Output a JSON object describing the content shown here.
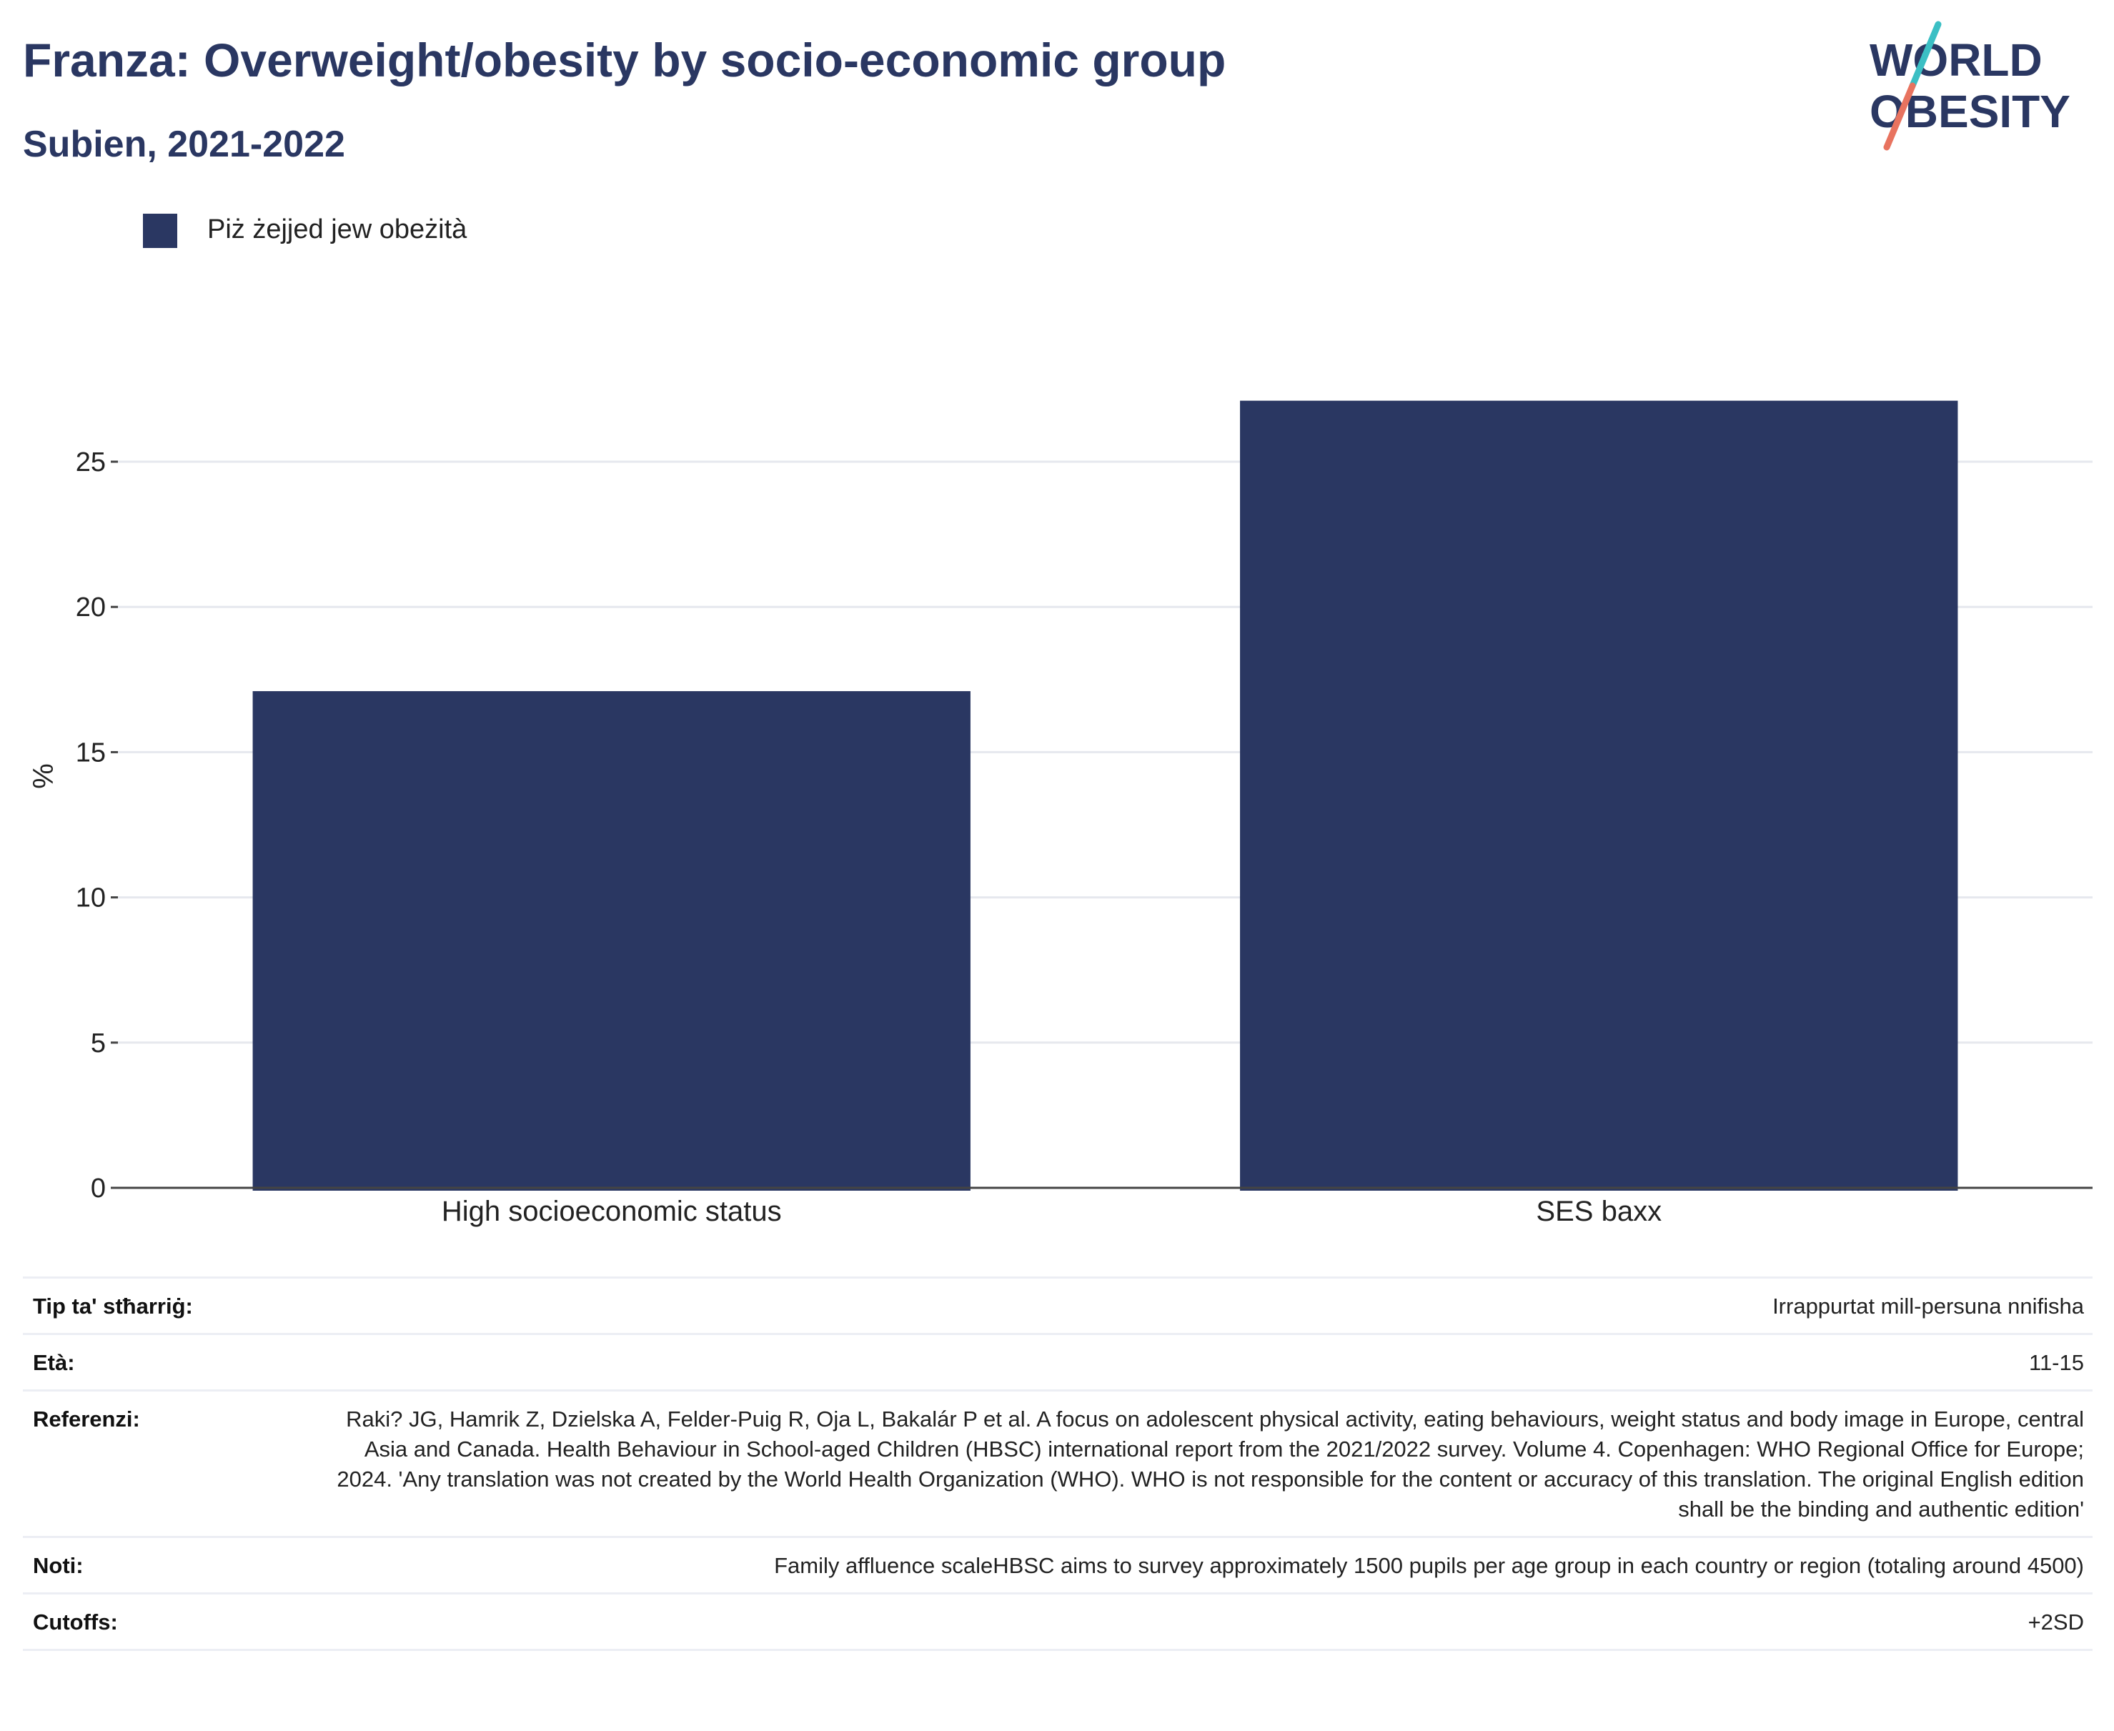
{
  "header": {
    "title": "Franza: Overweight/obesity by socio-economic group",
    "subtitle": "Subien, 2021-2022"
  },
  "logo": {
    "line1": "WORLD",
    "line2": "OBESITY",
    "colors": {
      "text": "#2a3762",
      "slash_top": "#3bbfc4",
      "slash_bottom": "#e8735f"
    }
  },
  "legend": {
    "items": [
      {
        "label": "Piż żejjed jew obeżità",
        "color": "#2a3762"
      }
    ]
  },
  "chart_data": {
    "type": "bar",
    "categories": [
      "High socioeconomic status",
      "SES baxx"
    ],
    "series": [
      {
        "name": "Piż żejjed jew obeżità",
        "values": [
          17.1,
          27.1
        ],
        "color": "#2a3762"
      }
    ],
    "ylabel": "%",
    "xlabel": "",
    "ylim": [
      0,
      30
    ],
    "yticks": [
      0,
      5,
      10,
      15,
      20,
      25
    ],
    "grid": true,
    "legend_position": "top-left"
  },
  "info": {
    "rows": [
      {
        "key": "Tip ta' stħarriġ:",
        "value": "Irrappurtat mill-persuna nnifisha"
      },
      {
        "key": "Età:",
        "value": "11-15"
      },
      {
        "key": "Referenzi:",
        "value": "Raki? JG, Hamrik Z, Dzielska A, Felder-Puig R, Oja L, Bakalár P et al. A focus on adolescent physical activity, eating behaviours, weight status and body image in Europe, central Asia and Canada. Health Behaviour in School-aged Children (HBSC) international report from the 2021/2022 survey. Volume 4. Copenhagen: WHO Regional Office for Europe; 2024. 'Any translation was not created by the World Health Organization (WHO). WHO is not responsible for the content or accuracy of this translation. The original English edition shall be the binding and authentic edition'"
      },
      {
        "key": "Noti:",
        "value": "Family affluence scaleHBSC aims to survey approximately 1500 pupils per age group in each country or region (totaling around 4500)"
      },
      {
        "key": "Cutoffs:",
        "value": "+2SD"
      }
    ]
  }
}
